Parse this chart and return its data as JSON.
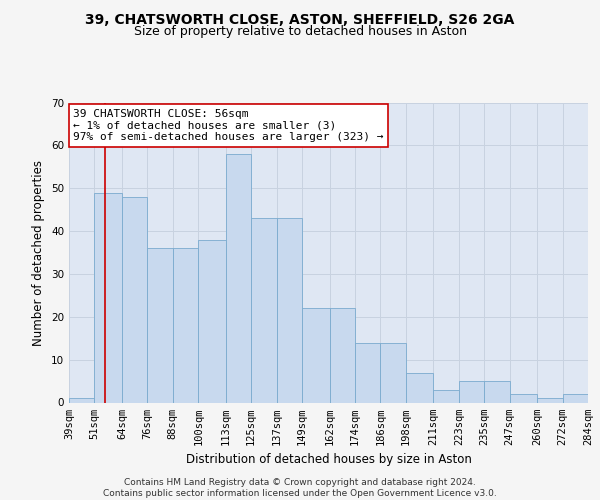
{
  "title_line1": "39, CHATSWORTH CLOSE, ASTON, SHEFFIELD, S26 2GA",
  "title_line2": "Size of property relative to detached houses in Aston",
  "xlabel": "Distribution of detached houses by size in Aston",
  "ylabel": "Number of detached properties",
  "bin_edges": [
    39,
    51,
    64,
    76,
    88,
    100,
    113,
    125,
    137,
    149,
    162,
    174,
    186,
    198,
    211,
    223,
    235,
    247,
    260,
    272,
    284
  ],
  "bar_heights": [
    1,
    49,
    48,
    36,
    36,
    38,
    58,
    43,
    43,
    22,
    22,
    14,
    14,
    7,
    3,
    5,
    5,
    2,
    1,
    2
  ],
  "property_value": 56,
  "annotation_text": "39 CHATSWORTH CLOSE: 56sqm\n← 1% of detached houses are smaller (3)\n97% of semi-detached houses are larger (323) →",
  "bar_color": "#c8d9ee",
  "bar_edge_color": "#7aaace",
  "vline_color": "#cc0000",
  "annotation_box_color": "#ffffff",
  "annotation_box_edge": "#cc0000",
  "grid_color": "#c8d2e0",
  "bg_color": "#dfe7f3",
  "fig_bg_color": "#f5f5f5",
  "ylim": [
    0,
    70
  ],
  "yticks": [
    0,
    10,
    20,
    30,
    40,
    50,
    60,
    70
  ],
  "footer_text": "Contains HM Land Registry data © Crown copyright and database right 2024.\nContains public sector information licensed under the Open Government Licence v3.0.",
  "title_fontsize": 10,
  "subtitle_fontsize": 9,
  "label_fontsize": 8.5,
  "tick_fontsize": 7.5,
  "annotation_fontsize": 8,
  "footer_fontsize": 6.5
}
